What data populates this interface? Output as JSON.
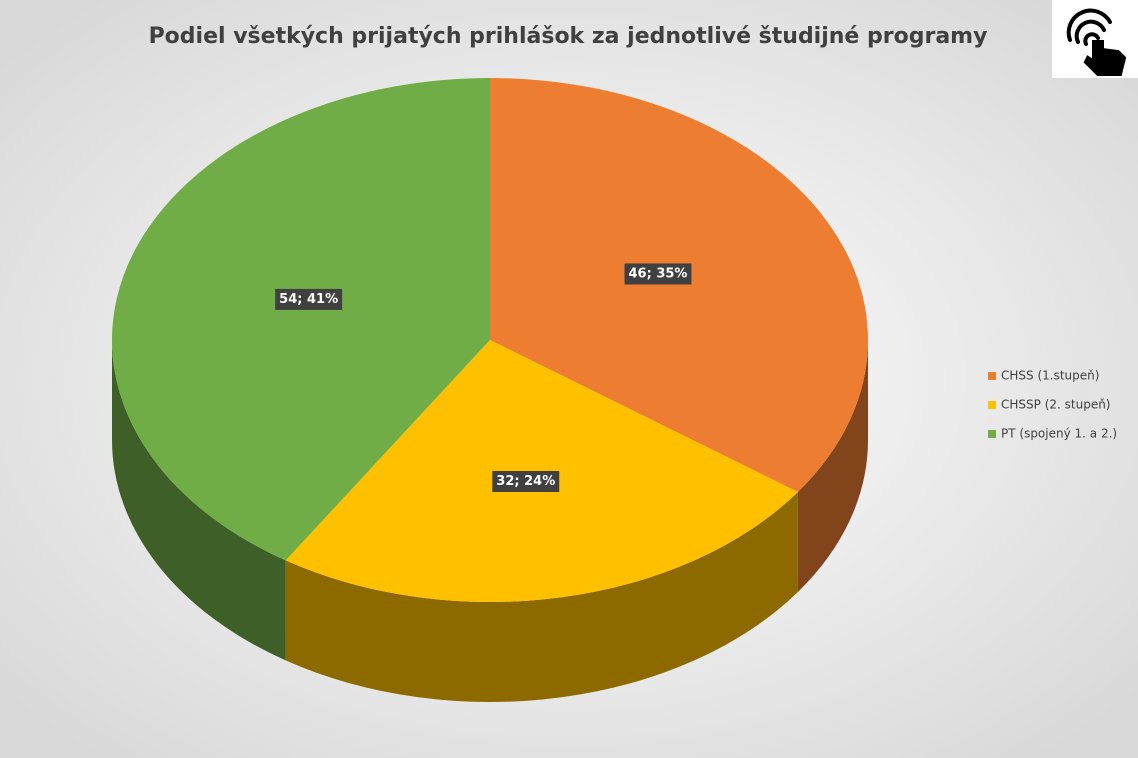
{
  "chart_data": {
    "type": "pie",
    "title": "Podiel všetkých prijatých prihlášok za jednotlivé študijné programy",
    "categories": [
      "CHSS (1.stupeň)",
      "CHSSP (2. stupeň)",
      "PT (spojený 1. a 2.)"
    ],
    "values": [
      46,
      32,
      54
    ],
    "value_labels": [
      "46; 35%",
      "32; 24%",
      "54; 41%"
    ],
    "colors": [
      "#ed7d31",
      "#ffc000",
      "#70ad47"
    ],
    "legend": "right"
  }
}
